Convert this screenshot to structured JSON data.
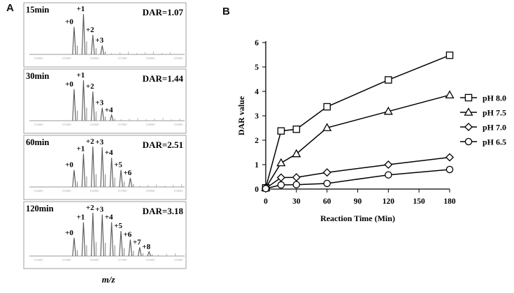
{
  "panel_labels": {
    "a": "A",
    "b": "B"
  },
  "spectra": {
    "xlabel": "m/z",
    "panels": [
      {
        "time": "15min",
        "dar": "DAR=1.07",
        "peak_labels": [
          "+0",
          "+1",
          "+2",
          "+3"
        ],
        "peaks": [
          0.68,
          1.0,
          0.48,
          0.22
        ]
      },
      {
        "time": "30min",
        "dar": "DAR=1.44",
        "peak_labels": [
          "+0",
          "+1",
          "+2",
          "+3",
          "+4"
        ],
        "peaks": [
          0.78,
          1.0,
          0.72,
          0.32,
          0.14
        ]
      },
      {
        "time": "60min",
        "dar": "DAR=2.51",
        "peak_labels": [
          "+0",
          "+1",
          "+2",
          "+3",
          "+4",
          "+5",
          "+6"
        ],
        "peaks": [
          0.42,
          0.82,
          1.0,
          0.98,
          0.72,
          0.42,
          0.22
        ]
      },
      {
        "time": "120min",
        "dar": "DAR=3.18",
        "peak_labels": [
          "+0",
          "+1",
          "+2",
          "+3",
          "+4",
          "+5",
          "+6",
          "+7",
          "+8"
        ],
        "peaks": [
          0.42,
          0.78,
          1.0,
          0.96,
          0.78,
          0.58,
          0.38,
          0.2,
          0.1
        ]
      }
    ]
  },
  "chart_data": {
    "type": "line",
    "xlabel": "Reaction Time (Min)",
    "ylabel": "DAR value",
    "x": [
      0,
      15,
      30,
      60,
      120,
      180
    ],
    "xticks": [
      0,
      30,
      60,
      90,
      120,
      150,
      180
    ],
    "yticks": [
      0,
      1,
      2,
      3,
      4,
      5,
      6
    ],
    "xlim": [
      0,
      180
    ],
    "ylim": [
      0,
      6
    ],
    "legend_position": "right",
    "grid": false,
    "series": [
      {
        "name": "pH 8.0",
        "marker": "square",
        "values": [
          0.05,
          2.38,
          2.45,
          3.37,
          4.47,
          5.48
        ]
      },
      {
        "name": "pH 7.5",
        "marker": "triangle",
        "values": [
          0.05,
          1.07,
          1.44,
          2.51,
          3.18,
          3.85
        ]
      },
      {
        "name": "pH 7.0",
        "marker": "diamond",
        "values": [
          0.03,
          0.47,
          0.48,
          0.68,
          1.0,
          1.3
        ]
      },
      {
        "name": "pH 6.5",
        "marker": "circle",
        "values": [
          0.02,
          0.17,
          0.18,
          0.23,
          0.58,
          0.8
        ]
      }
    ]
  }
}
